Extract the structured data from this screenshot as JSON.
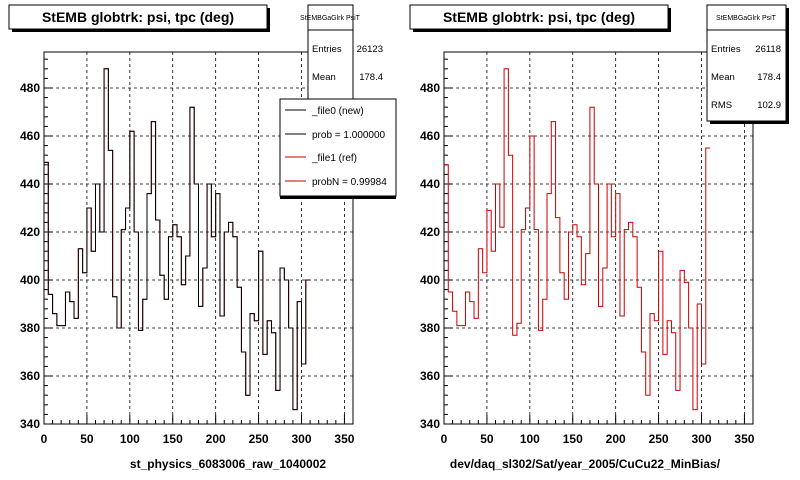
{
  "footer_text": "",
  "colors": {
    "ref": "#cc0000",
    "new": "#000000",
    "frame": "#000000",
    "grid": "#000000",
    "canvas": "#ffffff"
  },
  "left_panel": {
    "title": "StEMB globtrk: psi, tpc (deg)",
    "xlabel": "st_physics_6083006_raw_1040002",
    "stats": {
      "title": "StEMBGaGlrk PsiT",
      "rows": [
        {
          "label": "Entries",
          "value": "26123"
        },
        {
          "label": "Mean",
          "value": "178.4"
        }
      ]
    },
    "legend": [
      {
        "label": "_file0 (new)",
        "color": "#000000"
      },
      {
        "label": "prob = 1.000000",
        "color": "#000000"
      },
      {
        "label": "_file1 (ref)",
        "color": "#cc0000"
      },
      {
        "label": "probN = 0.99984",
        "color": "#cc0000"
      }
    ]
  },
  "right_panel": {
    "title": "StEMB globtrk: psi, tpc (deg)",
    "xlabel": "dev/daq_sl302/Sat/year_2005/CuCu22_MinBias/",
    "stats": {
      "title": "StEMBGaGlrk PsiT",
      "rows": [
        {
          "label": "Entries",
          "value": "26118"
        },
        {
          "label": "Mean",
          "value": "178.4"
        },
        {
          "label": "RMS",
          "value": "102.9"
        }
      ]
    }
  },
  "chart_data": [
    {
      "type": "histogram",
      "title": "StEMB globtrk: psi, tpc (deg)",
      "xlabel": "st_physics_6083006_raw_1040002",
      "xlim": [
        0,
        360
      ],
      "ylim": [
        340,
        495
      ],
      "xticks": [
        0,
        50,
        100,
        150,
        200,
        250,
        300,
        350
      ],
      "yticks": [
        340,
        360,
        380,
        400,
        420,
        440,
        460,
        480
      ],
      "grid": true,
      "legend_position": "top-right",
      "bin_width": 5,
      "series": [
        {
          "name": "_file1 (ref)",
          "color": "#cc0000",
          "values": [
            449,
            394,
            386,
            381,
            381,
            395,
            391,
            384,
            413,
            403,
            430,
            412,
            440,
            420,
            488,
            454,
            393,
            380,
            421,
            430,
            462,
            420,
            379,
            392,
            436,
            466,
            425,
            402,
            392,
            418,
            423,
            418,
            398,
            410,
            472,
            440,
            389,
            405,
            440,
            418,
            436,
            385,
            420,
            424,
            418,
            397,
            370,
            352,
            386,
            383,
            412,
            369,
            383,
            378,
            354,
            405,
            400,
            380,
            346,
            391,
            365,
            400
          ]
        },
        {
          "name": "_file0 (new)",
          "color": "#000000",
          "values": [
            449,
            394,
            386,
            381,
            381,
            395,
            391,
            384,
            413,
            403,
            430,
            412,
            440,
            420,
            488,
            454,
            393,
            380,
            421,
            430,
            462,
            420,
            379,
            392,
            436,
            466,
            425,
            402,
            392,
            418,
            423,
            418,
            398,
            410,
            472,
            440,
            389,
            405,
            440,
            418,
            436,
            385,
            420,
            424,
            418,
            397,
            370,
            352,
            386,
            383,
            412,
            369,
            383,
            378,
            354,
            405,
            400,
            380,
            346,
            391,
            365,
            400
          ]
        }
      ]
    },
    {
      "type": "histogram",
      "title": "StEMB globtrk: psi, tpc (deg)",
      "xlabel": "dev/daq_sl302/Sat/year_2005/CuCu22_MinBias/",
      "xlim": [
        0,
        360
      ],
      "ylim": [
        340,
        495
      ],
      "xticks": [
        0,
        50,
        100,
        150,
        200,
        250,
        300,
        350
      ],
      "yticks": [
        340,
        360,
        380,
        400,
        420,
        440,
        460,
        480
      ],
      "grid": true,
      "bin_width": 5,
      "series": [
        {
          "color": "#cc0000",
          "values": [
            448,
            395,
            387,
            381,
            381,
            395,
            391,
            384,
            413,
            403,
            429,
            412,
            440,
            422,
            488,
            452,
            377,
            382,
            421,
            430,
            460,
            421,
            379,
            392,
            436,
            466,
            426,
            403,
            392,
            420,
            423,
            418,
            398,
            411,
            472,
            440,
            389,
            405,
            440,
            418,
            436,
            385,
            421,
            424,
            418,
            397,
            370,
            352,
            386,
            383,
            412,
            369,
            383,
            378,
            354,
            404,
            399,
            380,
            346,
            390,
            365,
            455
          ]
        }
      ]
    }
  ]
}
